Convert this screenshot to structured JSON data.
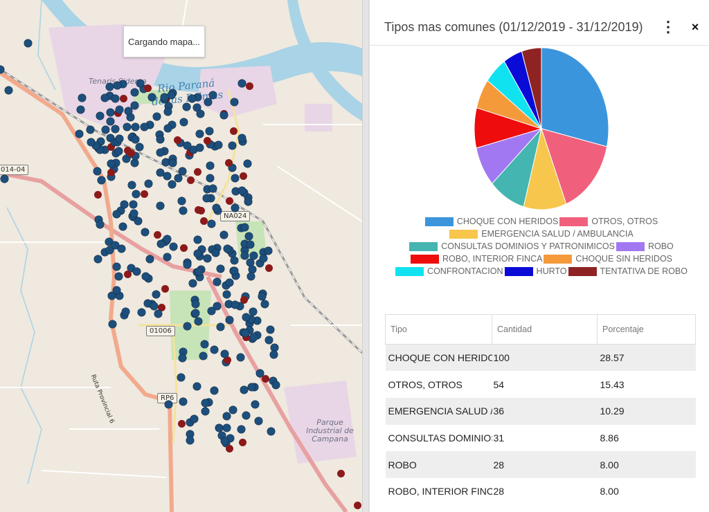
{
  "map": {
    "loading_text": "Cargando mapa...",
    "river_label": "Rio Paraná\nde las Palmas",
    "place_labels": [
      {
        "text": "Tenaris\nSiderca"
      },
      {
        "text": "Parque\nIndustrial\nde Campana"
      }
    ],
    "road_shields": [
      "014-04",
      "NA024",
      "01006",
      "RP6"
    ],
    "road_names": [
      "Ruta Provincial 6"
    ],
    "marker_colors": {
      "blue": "#1d4f7d",
      "red": "#8b1a1a"
    }
  },
  "panel": {
    "title": "Tipos mas comunes (01/12/2019 - 31/12/2019)",
    "menu_icon": "⋮",
    "close_icon": "×"
  },
  "chart_data": {
    "type": "pie",
    "title": "",
    "slices": [
      {
        "label": "CHOQUE CON HERIDOS",
        "value": 28.57,
        "color": "#3b95dc"
      },
      {
        "label": "OTROS, OTROS",
        "value": 15.43,
        "color": "#f0607c"
      },
      {
        "label": "EMERGENCIA SALUD / AMBULANCIA",
        "value": 10.29,
        "color": "#f7c64c"
      },
      {
        "label": "CONSULTAS DOMINIOS Y PATRONIMICOS",
        "value": 8.86,
        "color": "#44b5b0"
      },
      {
        "label": "ROBO",
        "value": 8.0,
        "color": "#a178f2"
      },
      {
        "label": "ROBO, INTERIOR FINCA",
        "value": 8.0,
        "color": "#ee0c0c"
      },
      {
        "label": "CHOQUE SIN HERIDOS",
        "value": 6.0,
        "color": "#f59a3b"
      },
      {
        "label": "CONFRONTACION",
        "value": 5.5,
        "color": "#11e2f0"
      },
      {
        "label": "HURTO",
        "value": 4.6,
        "color": "#0b0bd8"
      },
      {
        "label": "TENTATIVA DE ROBO",
        "value": 4.75,
        "color": "#8f2323"
      }
    ],
    "legend_placement": "bottom"
  },
  "legend_rows": [
    [
      0,
      1
    ],
    [
      2
    ],
    [
      3,
      4
    ],
    [
      5,
      6
    ],
    [
      7,
      8,
      9
    ]
  ],
  "table": {
    "headers": [
      "Tipo",
      "Cantidad",
      "Porcentaje"
    ],
    "rows": [
      [
        "CHOQUE CON HERIDOS",
        "100",
        "28.57"
      ],
      [
        "OTROS, OTROS",
        "54",
        "15.43"
      ],
      [
        "EMERGENCIA SALUD / AMBULANCIA",
        "36",
        "10.29"
      ],
      [
        "CONSULTAS DOMINIOS Y PATRONIMICOS",
        "31",
        "8.86"
      ],
      [
        "ROBO",
        "28",
        "8.00"
      ],
      [
        "ROBO, INTERIOR FINCA",
        "28",
        "8.00"
      ]
    ]
  }
}
